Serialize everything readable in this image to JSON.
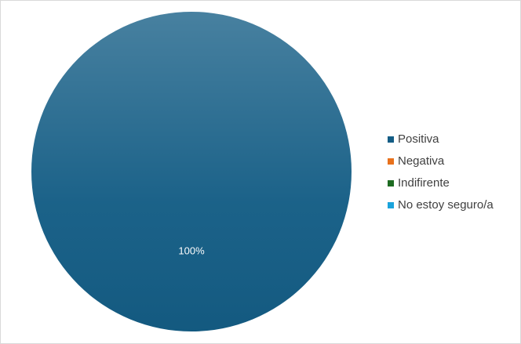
{
  "chart_data": {
    "type": "pie",
    "categories": [
      "Positiva",
      "Negativa",
      "Indifirente",
      "No estoy seguro/a"
    ],
    "values": [
      100,
      0,
      0,
      0
    ],
    "value_labels": [
      "100%",
      null,
      null,
      null
    ],
    "colors": [
      "#145d85",
      "#e8711c",
      "#1e6b22",
      "#1aa3dc"
    ],
    "legend": "right"
  }
}
